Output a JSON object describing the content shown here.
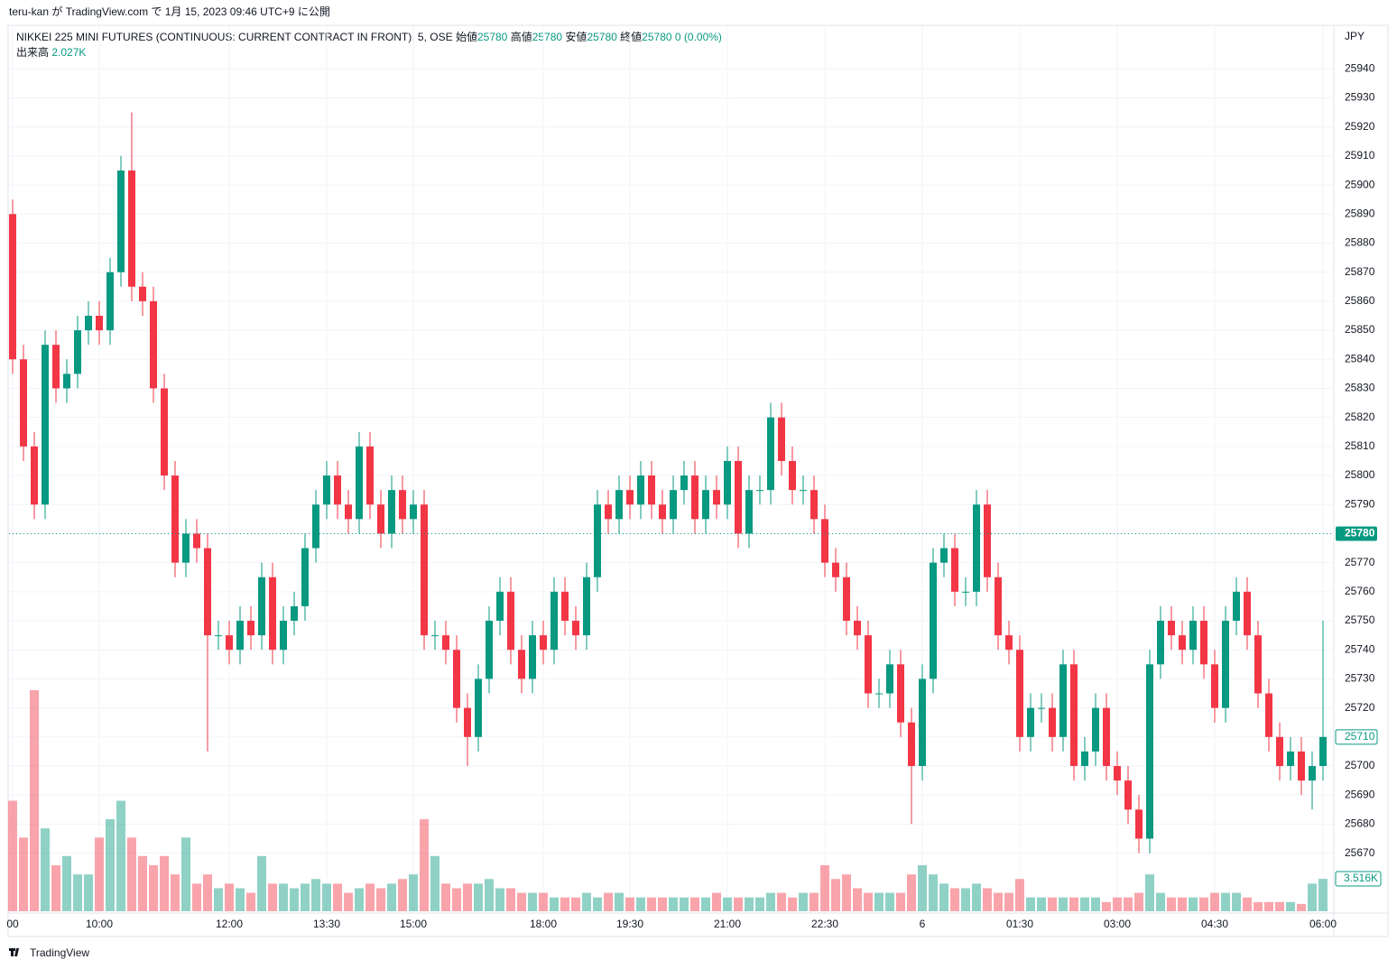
{
  "header": {
    "publish_info": "teru-kan が TradingView.com で 1月 15, 2023 09:46 UTC+9 に公開"
  },
  "footer": {
    "brand": "TradingView"
  },
  "chart_data": {
    "type": "candlestick",
    "title": "NIKKEI 225 MINI FUTURES (CONTINUOUS: CURRENT CONTRACT IN FRONT), 5, OSE",
    "legend": {
      "open_label": "始値",
      "open": 25780,
      "high_label": "高値",
      "high": 25780,
      "low_label": "安値",
      "low": 25780,
      "close_label": "終値",
      "close": 25780,
      "change": "0 (0.00%)",
      "volume_label": "出来高",
      "volume": "2.027K"
    },
    "currency": "JPY",
    "up_color": "#089981",
    "down_color": "#f23645",
    "price_line": 25780,
    "current_price": 25710,
    "current_volume": "3.516K",
    "ylim": [
      25650,
      25955
    ],
    "yticks": [
      25670,
      25680,
      25690,
      25700,
      25710,
      25720,
      25730,
      25740,
      25750,
      25760,
      25770,
      25780,
      25790,
      25800,
      25810,
      25820,
      25830,
      25840,
      25850,
      25860,
      25870,
      25880,
      25890,
      25900,
      25910,
      25920,
      25930,
      25940
    ],
    "grid": true,
    "categories": [
      "00",
      null,
      null,
      null,
      null,
      null,
      null,
      null,
      "10:00",
      null,
      null,
      null,
      null,
      null,
      null,
      null,
      null,
      null,
      null,
      null,
      "12:00",
      null,
      null,
      null,
      null,
      null,
      null,
      null,
      null,
      "13:30",
      null,
      null,
      null,
      null,
      null,
      null,
      null,
      "15:00",
      null,
      null,
      null,
      null,
      null,
      null,
      null,
      null,
      null,
      null,
      null,
      "18:00",
      null,
      null,
      null,
      null,
      null,
      null,
      null,
      "19:30",
      null,
      null,
      null,
      null,
      null,
      null,
      null,
      null,
      "21:00",
      null,
      null,
      null,
      null,
      null,
      null,
      null,
      null,
      "22:30",
      null,
      null,
      null,
      null,
      null,
      null,
      null,
      null,
      "6",
      null,
      null,
      null,
      null,
      null,
      null,
      null,
      null,
      "01:30",
      null,
      null,
      null,
      null,
      null,
      null,
      null,
      null,
      "03:00",
      null,
      null,
      null,
      null,
      null,
      null,
      null,
      null,
      "04:30",
      null,
      null,
      null,
      null,
      null,
      null,
      null,
      null,
      null,
      "06:00"
    ],
    "open": [
      25890,
      25840,
      25810,
      25790,
      25845,
      25830,
      25835,
      25850,
      25855,
      25850,
      25870,
      25905,
      25865,
      25860,
      25830,
      25800,
      25770,
      25780,
      25775,
      25745,
      25745,
      25740,
      25750,
      25745,
      25765,
      25740,
      25750,
      25755,
      25775,
      25790,
      25800,
      25790,
      25785,
      25810,
      25790,
      25780,
      25795,
      25785,
      25790,
      25745,
      25745,
      25740,
      25720,
      25710,
      25730,
      25750,
      25760,
      25740,
      25730,
      25745,
      25740,
      25760,
      25750,
      25745,
      25765,
      25790,
      25785,
      25795,
      25790,
      25800,
      25790,
      25785,
      25795,
      25800,
      25785,
      25795,
      25790,
      25805,
      25780,
      25795,
      25795,
      25820,
      25805,
      25795,
      25795,
      25785,
      25770,
      25765,
      25750,
      25745,
      25725,
      25725,
      25735,
      25715,
      25700,
      25730,
      25770,
      25775,
      25760,
      25760,
      25790,
      25765,
      25745,
      25740,
      25710,
      25720,
      25720,
      25710,
      25735,
      25700,
      25705,
      25720,
      25700,
      25695,
      25685,
      25675,
      25735,
      25750,
      25745,
      25740,
      25750,
      25735,
      25720,
      25750,
      25760,
      25745,
      25725,
      25710,
      25700,
      25705,
      25695,
      25700
    ],
    "high": [
      25895,
      25845,
      25815,
      25850,
      25850,
      25840,
      25855,
      25860,
      25860,
      25875,
      25910,
      25925,
      25870,
      25865,
      25835,
      25805,
      25785,
      25785,
      25780,
      25750,
      25750,
      25755,
      25755,
      25770,
      25770,
      25755,
      25760,
      25780,
      25795,
      25805,
      25805,
      25795,
      25815,
      25815,
      25795,
      25800,
      25800,
      25795,
      25795,
      25750,
      25750,
      25745,
      25725,
      25735,
      25755,
      25765,
      25765,
      25745,
      25750,
      25750,
      25765,
      25765,
      25755,
      25770,
      25795,
      25795,
      25800,
      25800,
      25805,
      25805,
      25795,
      25800,
      25805,
      25805,
      25800,
      25800,
      25810,
      25810,
      25800,
      25800,
      25825,
      25825,
      25810,
      25800,
      25800,
      25790,
      25775,
      25770,
      25755,
      25750,
      25730,
      25740,
      25740,
      25720,
      25735,
      25775,
      25780,
      25780,
      25765,
      25795,
      25795,
      25770,
      25750,
      25745,
      25725,
      25725,
      25725,
      25740,
      25740,
      25710,
      25725,
      25725,
      25705,
      25700,
      25690,
      25740,
      25755,
      25755,
      25750,
      25755,
      25755,
      25740,
      25755,
      25765,
      25765,
      25750,
      25730,
      25715,
      25710,
      25710,
      25705,
      25750
    ],
    "low": [
      25835,
      25805,
      25785,
      25785,
      25825,
      25825,
      25830,
      25845,
      25845,
      25845,
      25865,
      25860,
      25855,
      25825,
      25795,
      25765,
      25765,
      25770,
      25705,
      25740,
      25735,
      25735,
      25740,
      25740,
      25735,
      25735,
      25745,
      25750,
      25770,
      25785,
      25785,
      25780,
      25780,
      25785,
      25775,
      25775,
      25780,
      25780,
      25740,
      25740,
      25735,
      25715,
      25700,
      25705,
      25725,
      25745,
      25735,
      25725,
      25725,
      25735,
      25735,
      25745,
      25740,
      25740,
      25760,
      25780,
      25780,
      25785,
      25785,
      25785,
      25780,
      25780,
      25790,
      25780,
      25780,
      25785,
      25785,
      25775,
      25775,
      25790,
      25790,
      25800,
      25790,
      25790,
      25780,
      25765,
      25760,
      25745,
      25740,
      25720,
      25720,
      25720,
      25710,
      25680,
      25695,
      25725,
      25765,
      25755,
      25755,
      25755,
      25760,
      25740,
      25735,
      25705,
      25705,
      25715,
      25705,
      25705,
      25695,
      25695,
      25700,
      25695,
      25690,
      25680,
      25670,
      25670,
      25730,
      25740,
      25735,
      25735,
      25730,
      25715,
      25715,
      25745,
      25740,
      25720,
      25705,
      25695,
      25695,
      25690,
      25685,
      25695
    ],
    "close": [
      25840,
      25810,
      25790,
      25845,
      25830,
      25835,
      25850,
      25855,
      25850,
      25870,
      25905,
      25865,
      25860,
      25830,
      25800,
      25770,
      25780,
      25775,
      25745,
      25745,
      25740,
      25750,
      25745,
      25765,
      25740,
      25750,
      25755,
      25775,
      25790,
      25800,
      25790,
      25785,
      25810,
      25790,
      25780,
      25795,
      25785,
      25790,
      25745,
      25745,
      25740,
      25720,
      25710,
      25730,
      25750,
      25760,
      25740,
      25730,
      25745,
      25740,
      25760,
      25750,
      25745,
      25765,
      25790,
      25785,
      25795,
      25790,
      25800,
      25790,
      25785,
      25795,
      25800,
      25785,
      25795,
      25790,
      25805,
      25780,
      25795,
      25795,
      25820,
      25805,
      25795,
      25795,
      25785,
      25770,
      25765,
      25750,
      25745,
      25725,
      25725,
      25735,
      25715,
      25700,
      25730,
      25770,
      25775,
      25760,
      25760,
      25790,
      25765,
      25745,
      25740,
      25710,
      25720,
      25720,
      25710,
      25735,
      25700,
      25705,
      25720,
      25700,
      25695,
      25685,
      25675,
      25735,
      25750,
      25745,
      25740,
      25750,
      25735,
      25720,
      25750,
      25760,
      25745,
      25725,
      25710,
      25700,
      25705,
      25695,
      25700,
      25710
    ],
    "volume": [
      12000,
      8000,
      24000,
      9000,
      5000,
      6000,
      4000,
      4000,
      8000,
      10000,
      12000,
      8000,
      6000,
      5000,
      6000,
      4000,
      8000,
      3000,
      4000,
      2500,
      3000,
      2500,
      2000,
      6000,
      3000,
      3000,
      2500,
      3000,
      3500,
      3000,
      3000,
      2000,
      2500,
      3000,
      2500,
      3000,
      3500,
      4000,
      10000,
      6000,
      3000,
      2500,
      3000,
      3000,
      3500,
      2500,
      2500,
      2000,
      2000,
      2000,
      1500,
      1500,
      1500,
      2000,
      1500,
      2000,
      2000,
      1500,
      1500,
      1500,
      1500,
      1500,
      1500,
      1500,
      1500,
      2000,
      1500,
      1500,
      1500,
      1500,
      2000,
      2000,
      1500,
      2000,
      2000,
      5000,
      3500,
      4000,
      2500,
      2000,
      2000,
      2000,
      2000,
      4000,
      5000,
      4000,
      3000,
      2500,
      2500,
      3000,
      2500,
      2000,
      2000,
      3500,
      1500,
      1500,
      1500,
      1500,
      1500,
      1500,
      1500,
      1000,
      1500,
      1500,
      2000,
      4000,
      2000,
      1500,
      1500,
      1500,
      1500,
      2000,
      2000,
      2000,
      1500,
      1000,
      1000,
      1000,
      1000,
      800,
      3000,
      3516
    ]
  }
}
